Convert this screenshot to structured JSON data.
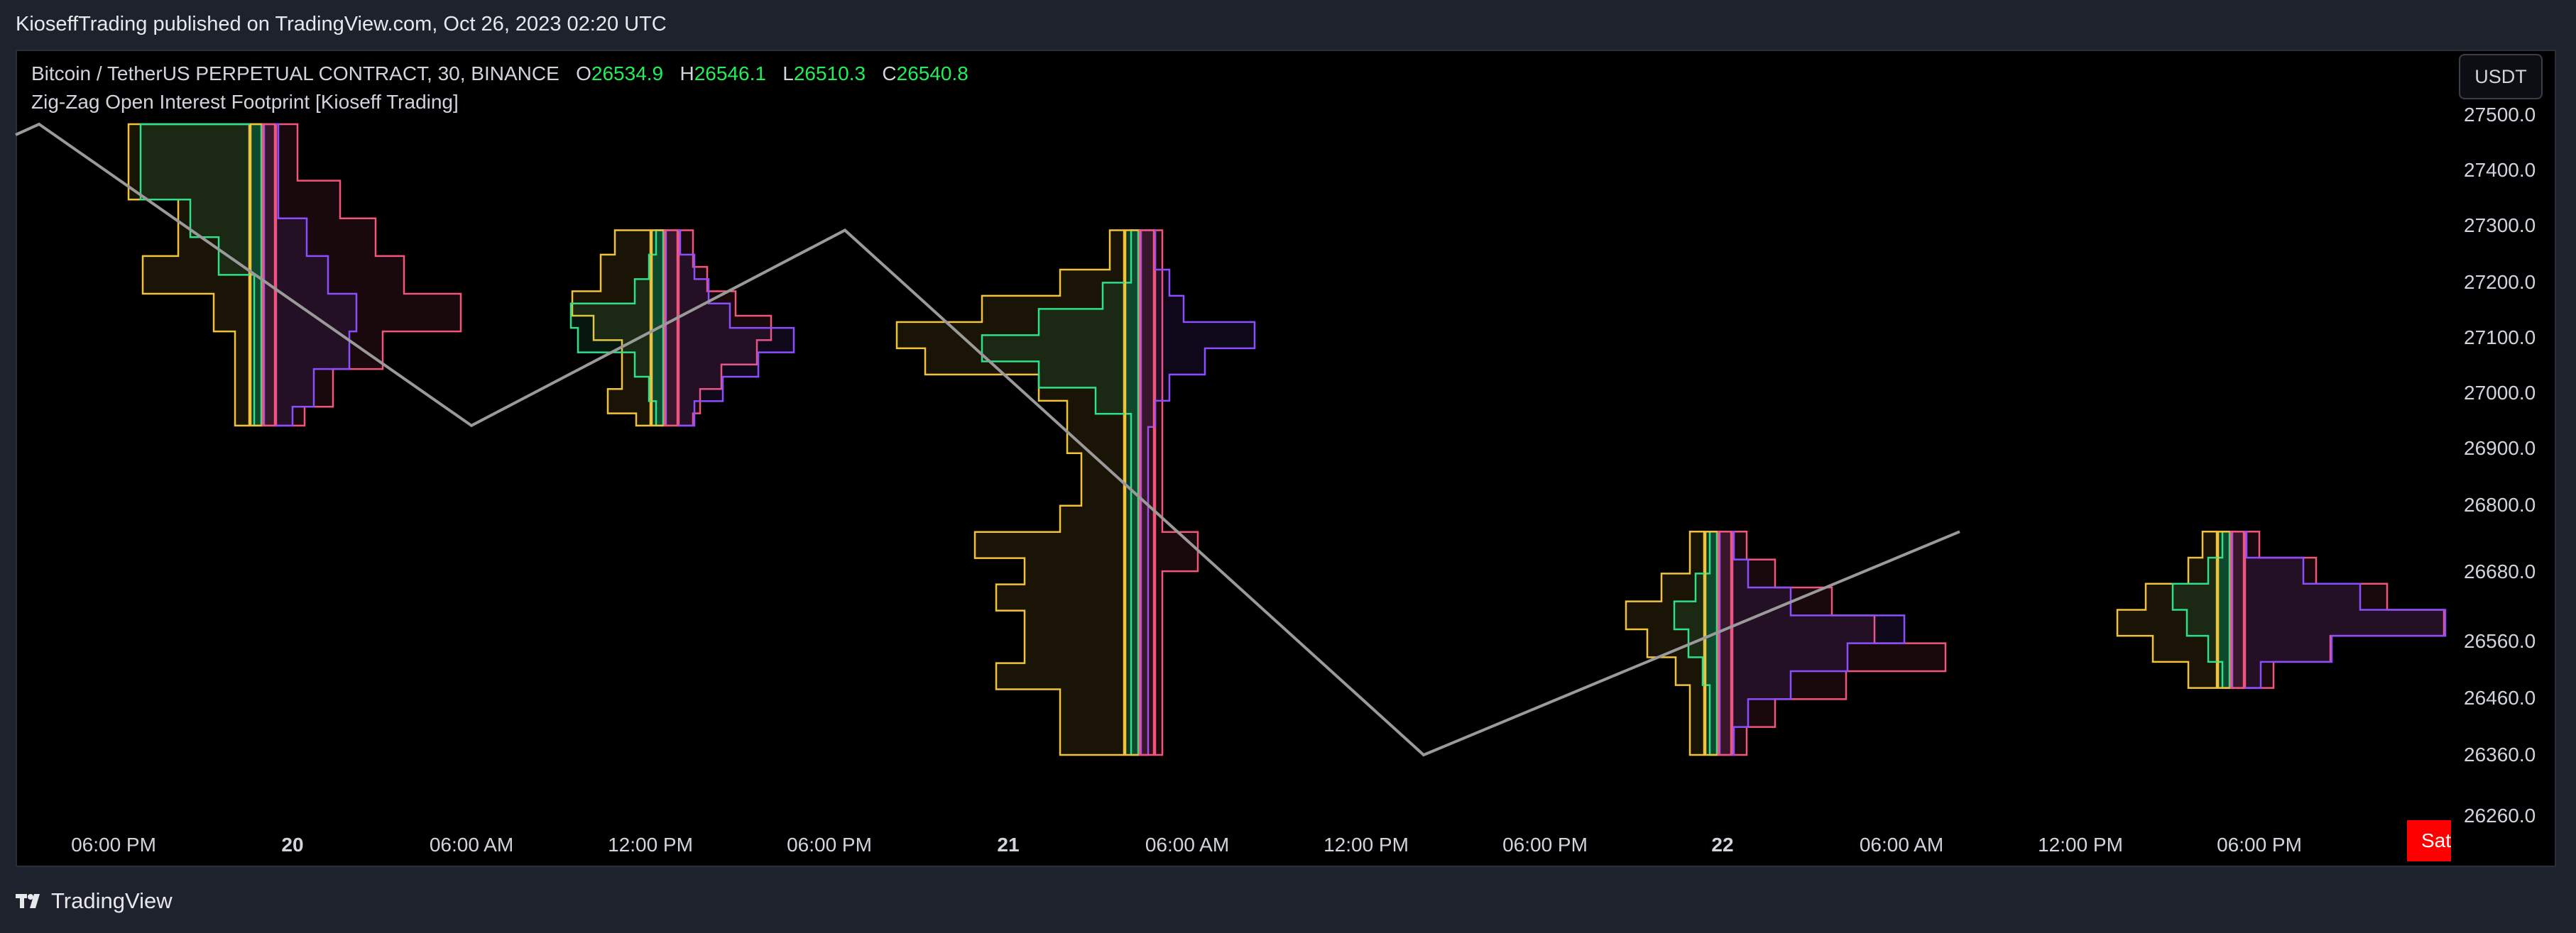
{
  "header": {
    "published_text": "KioseffTrading published on TradingView.com, Oct 26, 2023 02:20 UTC"
  },
  "legend": {
    "symbol": "Bitcoin / TetherUS PERPETUAL CONTRACT, 30, BINANCE",
    "open_label": "O",
    "open_value": "26534.9",
    "high_label": "H",
    "high_value": "26546.1",
    "low_label": "L",
    "low_value": "26510.3",
    "close_label": "C",
    "close_value": "26540.8",
    "indicator": "Zig-Zag Open Interest Footprint [Kioseff Trading]"
  },
  "currency": "USDT",
  "y_axis_labels": [
    "27500.0",
    "27400.0",
    "27300.0",
    "27200.0",
    "27100.0",
    "27000.0",
    "26900.0",
    "26800.0",
    "26680.0",
    "26560.0",
    "26460.0",
    "26360.0",
    "26260.0"
  ],
  "x_axis_labels": [
    {
      "text": "06:00 PM",
      "bold": false
    },
    {
      "text": "20",
      "bold": true
    },
    {
      "text": "06:00 AM",
      "bold": false
    },
    {
      "text": "12:00 PM",
      "bold": false
    },
    {
      "text": "06:00 PM",
      "bold": false
    },
    {
      "text": "21",
      "bold": true
    },
    {
      "text": "06:00 AM",
      "bold": false
    },
    {
      "text": "12:00 PM",
      "bold": false
    },
    {
      "text": "06:00 PM",
      "bold": false
    },
    {
      "text": "22",
      "bold": true
    },
    {
      "text": "06:00 AM",
      "bold": false
    },
    {
      "text": "12:00 PM",
      "bold": false
    },
    {
      "text": "06:00 PM",
      "bold": false
    }
  ],
  "x_axis_badge": "Sat",
  "footer": {
    "brand": "TradingView",
    "logo_icon": "tradingview-logo-icon"
  },
  "colors": {
    "zigzag": "#9a9a9a",
    "yellow": "#f2c23a",
    "green": "#2ee08a",
    "pink": "#f2557a",
    "purple": "#8a4dff",
    "up_text": "#22ee5b",
    "badge": "#ff0000"
  },
  "chart_data": {
    "type": "line",
    "zigzag": [
      {
        "x": "Oct 19 13:00",
        "y": 27500
      },
      {
        "x": "Oct 20 06:00",
        "y": 26960
      },
      {
        "x": "Oct 20 16:00",
        "y": 27310
      },
      {
        "x": "Oct 21 13:00",
        "y": 26370
      },
      {
        "x": "Oct 22 09:30",
        "y": 26770
      }
    ],
    "ylim": [
      26260,
      27540
    ],
    "footprints": [
      {
        "top": 27500,
        "bottom": 26960
      },
      {
        "top": 27310,
        "bottom": 26960
      },
      {
        "top": 27310,
        "bottom": 26370
      },
      {
        "top": 26770,
        "bottom": 26370
      },
      {
        "top": 26770,
        "bottom": 26490
      }
    ]
  }
}
